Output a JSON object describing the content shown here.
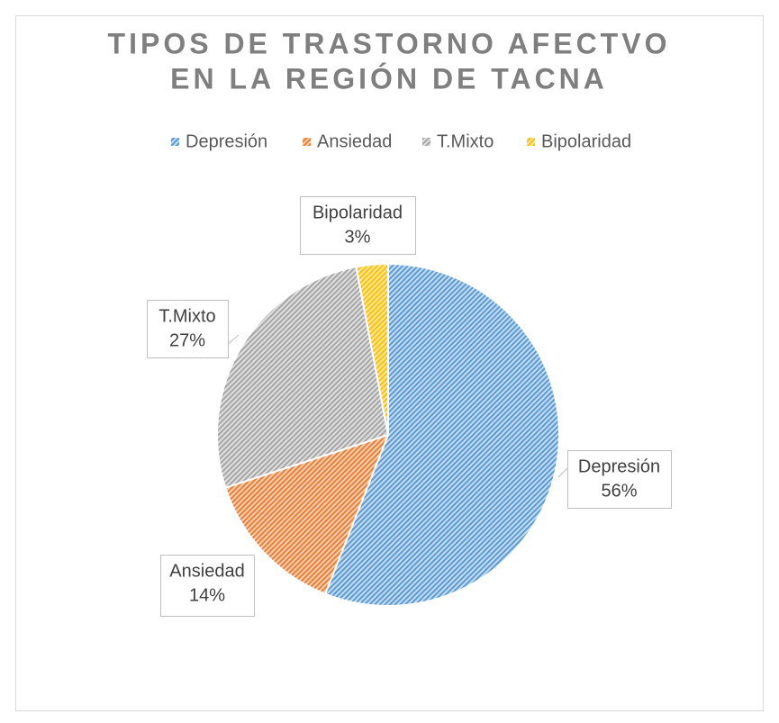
{
  "chart_data": {
    "type": "pie",
    "title": [
      "TIPOS DE TRASTORNO AFECTVO",
      "EN LA REGIÓN DE TACNA"
    ],
    "categories": [
      "Depresión",
      "Ansiedad",
      "T.Mixto",
      "Bipolaridad"
    ],
    "values": [
      56,
      14,
      27,
      3
    ],
    "value_labels": [
      "56%",
      "14%",
      "27%",
      "3%"
    ],
    "colors": [
      "#5b9bd5",
      "#ed7d31",
      "#a5a5a5",
      "#ffc000"
    ],
    "legend": "top"
  }
}
